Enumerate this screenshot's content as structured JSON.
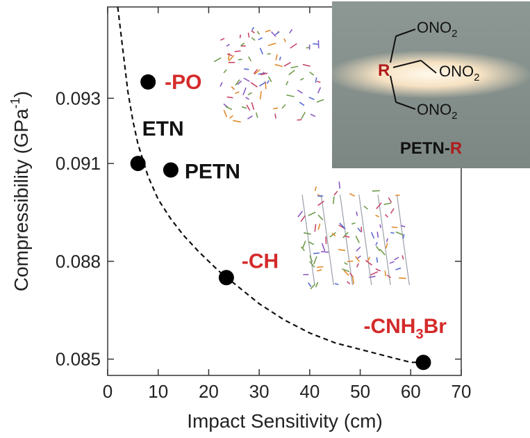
{
  "chart_data": {
    "type": "scatter",
    "xlabel": "Impact Sensitivity (cm)",
    "ylabel": "Compressibility (GPa",
    "ylabel_superscript": "-1",
    "ylabel_close": ")",
    "xlim": [
      0,
      70
    ],
    "ylim": [
      0.0845,
      0.0958
    ],
    "x_ticks": [
      0,
      10,
      20,
      30,
      40,
      50,
      60,
      70
    ],
    "y_ticks": [
      0.085,
      0.088,
      0.091,
      0.093
    ],
    "y_tick_labels": [
      "0.085",
      "0.088",
      "0.091",
      "0.093"
    ],
    "series": [
      {
        "points": [
          {
            "x": 8,
            "y": 0.0935,
            "label": "-PO",
            "label_color": "#d42a2a"
          },
          {
            "x": 6,
            "y": 0.091,
            "label": "ETN",
            "label_color": "#111111"
          },
          {
            "x": 12.5,
            "y": 0.0908,
            "label": "PETN",
            "label_color": "#111111"
          },
          {
            "x": 23.5,
            "y": 0.0875,
            "label": "-CH",
            "label_color": "#d42a2a"
          },
          {
            "x": 62.5,
            "y": 0.0849,
            "label": "-CNH",
            "label_sub": "3",
            "label_tail": "Br",
            "label_color": "#d42a2a"
          }
        ]
      }
    ],
    "fit_curve": {
      "style": "dashed",
      "x": [
        2,
        3,
        4,
        5,
        6,
        8,
        10,
        12.5,
        15,
        18,
        22,
        26,
        30,
        35,
        40,
        45,
        50,
        55,
        60,
        62.5
      ],
      "y": [
        0.0959,
        0.0945,
        0.0932,
        0.0923,
        0.0916,
        0.0906,
        0.0899,
        0.0893,
        0.0888,
        0.0883,
        0.0877,
        0.0872,
        0.0867,
        0.0862,
        0.0858,
        0.0855,
        0.0853,
        0.0851,
        0.0849,
        0.0849
      ]
    },
    "inset": {
      "core_label": "R",
      "groups": [
        "ONO",
        "ONO",
        "ONO"
      ],
      "group_sub": "2",
      "caption_prefix": "PETN-",
      "caption_r": "R"
    },
    "colors": {
      "highlight_label": "#d42a2a",
      "point_fill": "#000000",
      "curve": "#111111"
    }
  }
}
